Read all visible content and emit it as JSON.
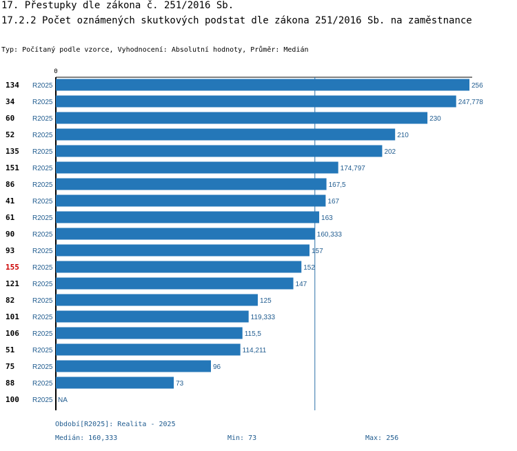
{
  "title_main": "17. Přestupky dle zákona č. 251/2016 Sb.",
  "title_sub": "17.2.2 Počet oznámených skutkových podstat dle zákona 251/2016 Sb. na zaměstnance",
  "type_line": "Typ: Počítaný podle vzorce, Vyhodnocení: Absolutní hodnoty, Průměr: Medián",
  "colors": {
    "bar": "#2477b8",
    "label_text": "#1f5b8f",
    "highlight": "#cc0000",
    "axis": "#000000",
    "median_line": "#2a6fa8"
  },
  "footer": {
    "period": "Období[R2025]: Realita - 2025",
    "median": "Medián: 160,333",
    "min": "Min: 73",
    "max": "Max: 256"
  },
  "chart_data": {
    "type": "bar",
    "orientation": "horizontal",
    "title": "17.2.2 Počet oznámených skutkových podstat dle zákona 251/2016 Sb. na zaměstnance",
    "axis_zero_label": "0",
    "xlim": [
      0,
      256
    ],
    "median": 160.333,
    "highlight_id": "155",
    "rows": [
      {
        "id": "134",
        "series": "R2025",
        "value": 256,
        "label": "256"
      },
      {
        "id": "34",
        "series": "R2025",
        "value": 247.778,
        "label": "247,778"
      },
      {
        "id": "60",
        "series": "R2025",
        "value": 230,
        "label": "230"
      },
      {
        "id": "52",
        "series": "R2025",
        "value": 210,
        "label": "210"
      },
      {
        "id": "135",
        "series": "R2025",
        "value": 202,
        "label": "202"
      },
      {
        "id": "151",
        "series": "R2025",
        "value": 174.797,
        "label": "174,797"
      },
      {
        "id": "86",
        "series": "R2025",
        "value": 167.5,
        "label": "167,5"
      },
      {
        "id": "41",
        "series": "R2025",
        "value": 167,
        "label": "167"
      },
      {
        "id": "61",
        "series": "R2025",
        "value": 163,
        "label": "163"
      },
      {
        "id": "90",
        "series": "R2025",
        "value": 160.333,
        "label": "160,333"
      },
      {
        "id": "93",
        "series": "R2025",
        "value": 157,
        "label": "157"
      },
      {
        "id": "155",
        "series": "R2025",
        "value": 152,
        "label": "152"
      },
      {
        "id": "121",
        "series": "R2025",
        "value": 147,
        "label": "147"
      },
      {
        "id": "82",
        "series": "R2025",
        "value": 125,
        "label": "125"
      },
      {
        "id": "101",
        "series": "R2025",
        "value": 119.333,
        "label": "119,333"
      },
      {
        "id": "106",
        "series": "R2025",
        "value": 115.5,
        "label": "115,5"
      },
      {
        "id": "51",
        "series": "R2025",
        "value": 114.211,
        "label": "114,211"
      },
      {
        "id": "75",
        "series": "R2025",
        "value": 96,
        "label": "96"
      },
      {
        "id": "88",
        "series": "R2025",
        "value": 73,
        "label": "73"
      },
      {
        "id": "100",
        "series": "R2025",
        "value": null,
        "label": "NA"
      }
    ]
  }
}
